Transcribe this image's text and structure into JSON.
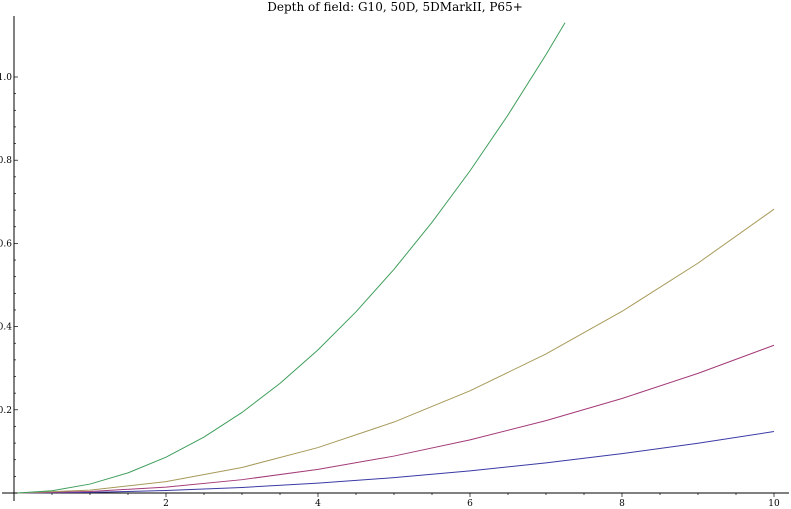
{
  "chart_data": {
    "type": "line",
    "title": "Depth of field: G10, 50D, 5DMarkII, P65+",
    "xlabel": "",
    "ylabel": "",
    "xlim": [
      0,
      10
    ],
    "ylim": [
      0,
      1.14
    ],
    "grid": false,
    "legend": "none",
    "x_ticks": [
      {
        "value": 2,
        "label": "2"
      },
      {
        "value": 4,
        "label": "4"
      },
      {
        "value": 6,
        "label": "6"
      },
      {
        "value": 8,
        "label": "8"
      },
      {
        "value": 10,
        "label": "10"
      }
    ],
    "y_ticks": [
      {
        "value": 0.2,
        "label": "0.2"
      },
      {
        "value": 0.4,
        "label": "0.4"
      },
      {
        "value": 0.6,
        "label": "0.6"
      },
      {
        "value": 0.8,
        "label": "0.8"
      },
      {
        "value": 1.0,
        "label": "1.0"
      }
    ],
    "series": [
      {
        "color": "#3a3aa6",
        "x": [
          0.05,
          1,
          2,
          3,
          4,
          5,
          6,
          7,
          8,
          9,
          10
        ],
        "y": [
          0.0,
          0.0015,
          0.0059,
          0.0133,
          0.0236,
          0.0369,
          0.0532,
          0.0724,
          0.0946,
          0.1197,
          0.1478
        ]
      },
      {
        "color": "#a33a78",
        "x": [
          0.05,
          1,
          2,
          3,
          4,
          5,
          6,
          7,
          8,
          9,
          10
        ],
        "y": [
          0.0,
          0.0036,
          0.0142,
          0.032,
          0.0568,
          0.0888,
          0.1278,
          0.174,
          0.2272,
          0.2876,
          0.3551
        ]
      },
      {
        "color": "#a89a5a",
        "x": [
          0.05,
          1,
          2,
          3,
          4,
          5,
          6,
          7,
          8,
          9,
          10
        ],
        "y": [
          0.0001,
          0.0068,
          0.0273,
          0.0614,
          0.1092,
          0.1706,
          0.2456,
          0.3343,
          0.4366,
          0.5526,
          0.6822
        ]
      },
      {
        "color": "#3f9e5c",
        "x": [
          0.05,
          0.5,
          1,
          1.5,
          2,
          2.5,
          3,
          3.5,
          4,
          4.5,
          5,
          5.5,
          6,
          6.5,
          7,
          7.25
        ],
        "y": [
          0.0001,
          0.0054,
          0.0215,
          0.0484,
          0.086,
          0.1344,
          0.1936,
          0.2635,
          0.3441,
          0.4355,
          0.5377,
          0.6506,
          0.7743,
          0.9087,
          1.0539,
          1.1305
        ]
      }
    ]
  }
}
